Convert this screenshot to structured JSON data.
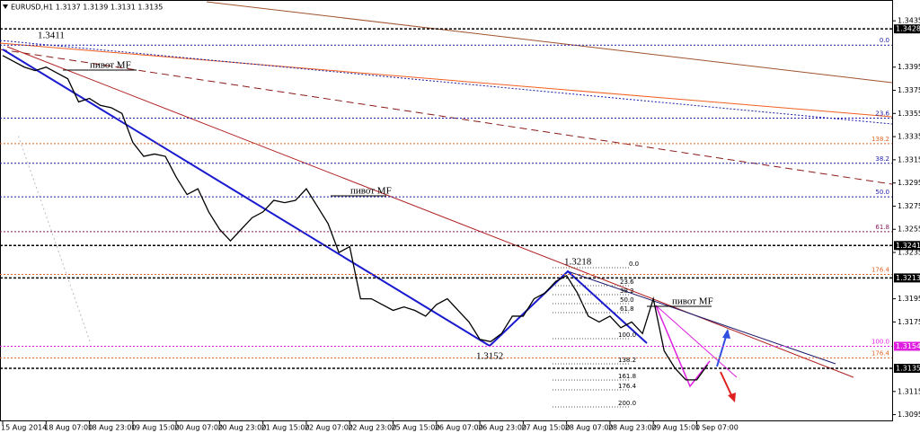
{
  "chart_data": {
    "type": "line",
    "title": "EURUSD,H1  1.3137 1.3139 1.3131 1.3135",
    "categories": [
      "15 Aug 2014",
      null,
      null,
      null,
      "18 Aug 07:00",
      null,
      null,
      null,
      "18 Aug 23:00",
      null,
      null,
      null,
      "19 Aug 15:00",
      null,
      null,
      null,
      "20 Aug 07:00",
      null,
      null,
      null,
      "20 Aug 23:00",
      null,
      null,
      null,
      "21 Aug 15:00",
      null,
      null,
      null,
      "22 Aug 07:00",
      null,
      null,
      null,
      "22 Aug 23:00",
      null,
      null,
      null,
      "25 Aug 15:00",
      null,
      null,
      null,
      "26 Aug 07:00",
      null,
      null,
      null,
      "26 Aug 23:00",
      null,
      null,
      null,
      "27 Aug 15:00",
      null,
      null,
      null,
      "28 Aug 07:00",
      null,
      null,
      null,
      "28 Aug 23:00",
      null,
      null,
      null,
      "29 Aug 15:00",
      null,
      null,
      null,
      "1 Sep 07:00",
      null
    ],
    "series": [
      {
        "name": "EURUSD,H1",
        "color": "#000000",
        "values": [
          1.3405,
          1.34,
          1.3395,
          1.3392,
          1.3395,
          1.339,
          1.3385,
          1.3365,
          1.3368,
          1.3362,
          1.336,
          1.3355,
          1.333,
          1.3318,
          1.332,
          1.3318,
          1.33,
          1.3285,
          1.329,
          1.327,
          1.3255,
          1.3245,
          1.3255,
          1.3265,
          1.327,
          1.328,
          1.3278,
          1.328,
          1.329,
          1.3275,
          1.326,
          1.3235,
          1.324,
          1.3195,
          1.3195,
          1.319,
          1.3185,
          1.3188,
          1.3185,
          1.318,
          1.319,
          1.3195,
          1.3185,
          1.3175,
          1.316,
          1.3158,
          1.3165,
          1.318,
          1.318,
          1.3195,
          1.32,
          1.321,
          1.3215,
          1.32,
          1.318,
          1.3175,
          1.318,
          1.317,
          1.3175,
          1.3165,
          1.3195,
          1.315,
          1.3135,
          1.3125,
          1.3125,
          1.3138
        ]
      }
    ],
    "ylim": [
      1.309,
      1.3439
    ],
    "yticks": [
      1.3095,
      1.3115,
      1.3175,
      1.3195,
      1.3235,
      1.3255,
      1.3275,
      1.3295,
      1.3315,
      1.3335,
      1.3355,
      1.3375,
      1.3395,
      1.3435
    ],
    "levels": [
      {
        "value": 1.3428,
        "color": "#000000",
        "badge": true
      },
      {
        "value": 1.3414,
        "label": "0.0",
        "color": "#1c1ca8"
      },
      {
        "value": 1.3351,
        "label": "23.6",
        "color": "#1c1ca8"
      },
      {
        "value": 1.3329,
        "label": "138.2",
        "color": "#e0662a"
      },
      {
        "value": 1.3312,
        "label": "38.2",
        "color": "#1c1ca8"
      },
      {
        "value": 1.3283,
        "label": "50.0",
        "color": "#1c1ca8"
      },
      {
        "value": 1.3253,
        "label": "61.8",
        "color": "#8a1a5a"
      },
      {
        "value": 1.3241,
        "color": "#000000",
        "badge": true
      },
      {
        "value": 1.3216,
        "label": "176.4",
        "color": "#e0662a"
      },
      {
        "value": 1.3213,
        "color": "#000000",
        "badge": true
      },
      {
        "value": 1.3154,
        "label": "100.0",
        "color": "#e020e0",
        "badge": true
      },
      {
        "value": 1.3144,
        "label": "176.4",
        "color": "#e0662a"
      },
      {
        "value": 1.3135,
        "color": "#000000",
        "badge": true
      }
    ],
    "annotations": [
      "1.3411",
      "1.3218",
      "1.3152",
      "пивот MF",
      "пивот MF",
      "пивот MF"
    ],
    "fib_labels": [
      "0.0",
      "23.6",
      "38.2",
      "50.0",
      "61.8",
      "100.0",
      "138.2",
      "161.8",
      "176.4",
      "200.0"
    ]
  }
}
